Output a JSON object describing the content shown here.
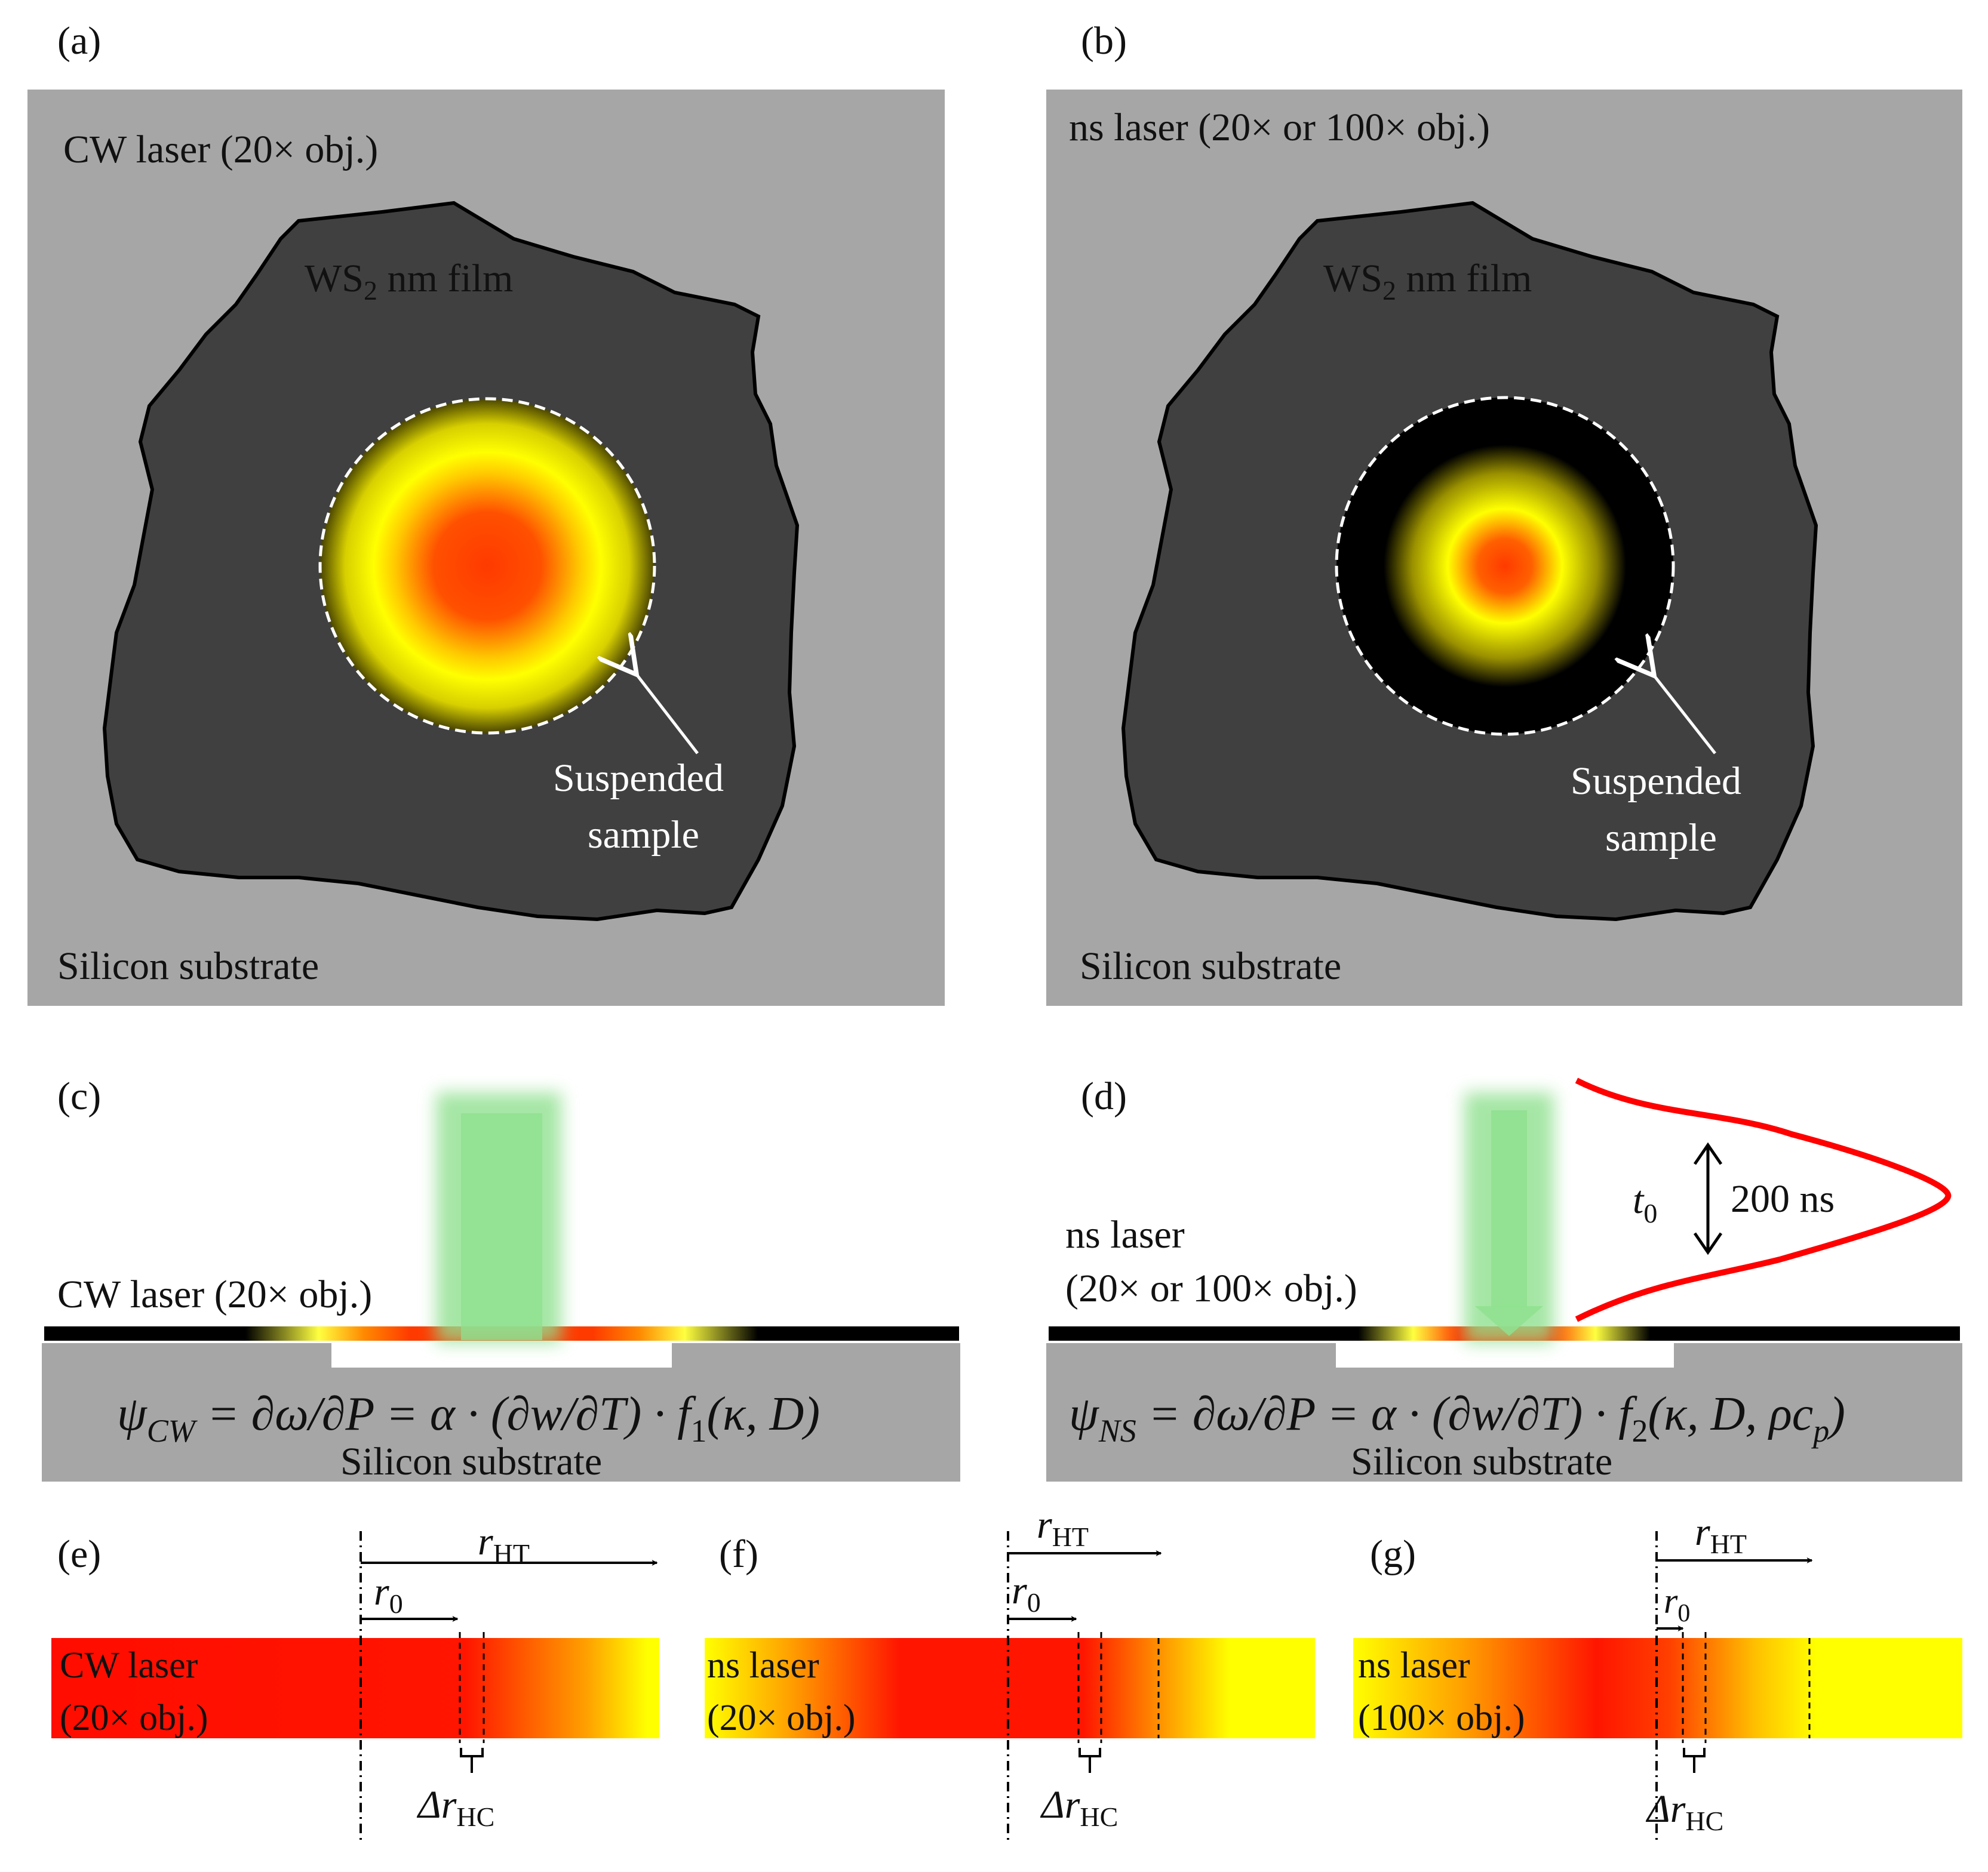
{
  "panels": {
    "a": {
      "label": "(a)",
      "title": "CW laser (20× obj.)",
      "film_prefix": "WS",
      "film_sub": "2",
      "film_suffix": " nm film",
      "suspended_line1": "Suspended",
      "suspended_line2": "sample",
      "substrate": "Silicon substrate"
    },
    "b": {
      "label": "(b)",
      "title": "ns laser (20× or 100× obj.)",
      "film_prefix": "WS",
      "film_sub": "2",
      "film_suffix": " nm film",
      "suspended_line1": "Suspended",
      "suspended_line2": "sample",
      "substrate": "Silicon substrate"
    },
    "c": {
      "label": "(c)",
      "laser": "CW laser (20× obj.)",
      "eq_psi": "ψ",
      "eq_sub": "CW",
      "eq_body": " = ∂ω/∂P = α · (∂w/∂T) · f",
      "eq_fsub": "1",
      "eq_args": "(κ, D)",
      "substrate": "Silicon substrate"
    },
    "d": {
      "label": "(d)",
      "laser_line1": "ns laser",
      "laser_line2": "(20× or 100× obj.)",
      "pulse_symbol": "t",
      "pulse_symbol_sub": "0",
      "pulse_width": "200 ns",
      "eq_psi": "ψ",
      "eq_sub": "NS",
      "eq_body": " = ∂ω/∂P = α · (∂w/∂T) · f",
      "eq_fsub": "2",
      "eq_args": "(κ, D, ρc",
      "eq_args_sub": "p",
      "eq_args_end": ")",
      "substrate": "Silicon substrate"
    },
    "e": {
      "label": "(e)",
      "bar_line1": "CW laser",
      "bar_line2": "(20× obj.)",
      "r_ht": "r",
      "r_ht_sub": "HT",
      "r0": "r",
      "r0_sub": "0",
      "delta": "Δr",
      "delta_sub": "HC"
    },
    "f": {
      "label": "(f)",
      "bar_line1": "ns laser",
      "bar_line2": "(20× obj.)",
      "r_ht": "r",
      "r_ht_sub": "HT",
      "r0": "r",
      "r0_sub": "0",
      "delta": "Δr",
      "delta_sub": "HC"
    },
    "g": {
      "label": "(g)",
      "bar_line1": "ns laser",
      "bar_line2": "(100× obj.)",
      "r_ht": "r",
      "r_ht_sub": "HT",
      "r0": "r",
      "r0_sub": "0",
      "delta": "Δr",
      "delta_sub": "HC"
    }
  },
  "colors": {
    "substrate": "#a6a6a6",
    "film": "#404040",
    "hot": "#ff3a00",
    "warm": "#ffff00",
    "laser": "#8fe08f",
    "pulse": "#ff0000"
  }
}
